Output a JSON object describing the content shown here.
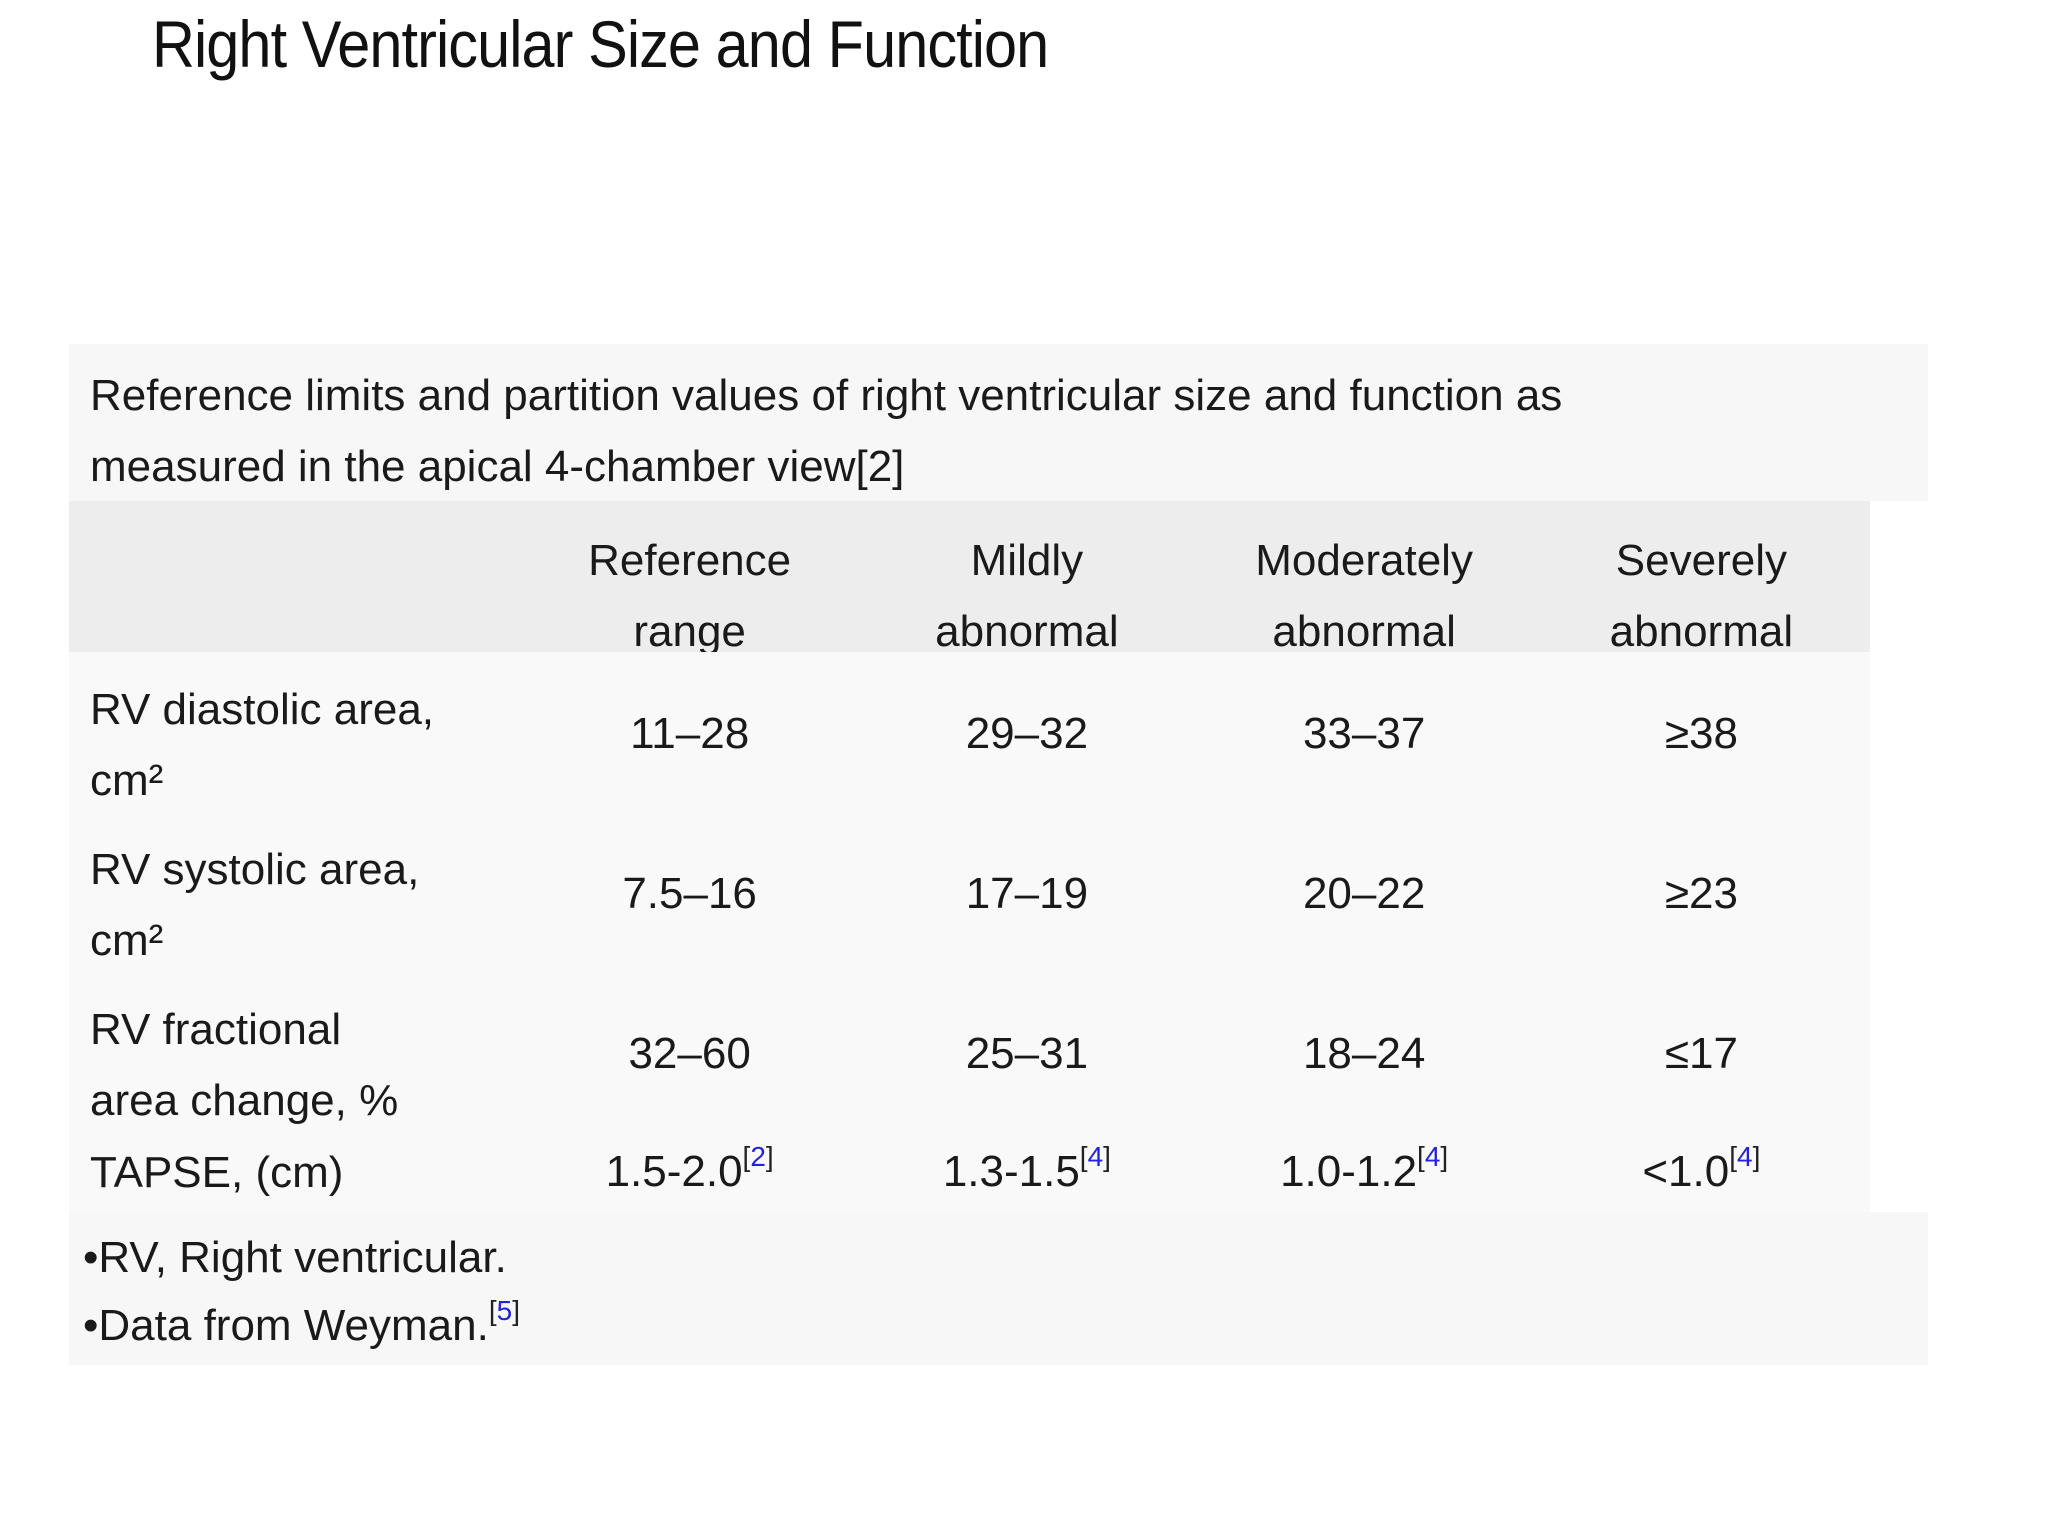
{
  "title": "Right Ventricular Size and Function",
  "caption": {
    "lines": [
      "Reference limits and partition values of right ventricular size and function as",
      "measured in the apical 4-chamber view[2]"
    ]
  },
  "refs": {
    "open": "[",
    "close": "]"
  },
  "table": {
    "columns": [
      {
        "lines": [
          "Reference",
          "range"
        ]
      },
      {
        "lines": [
          "Mildly",
          "abnormal"
        ]
      },
      {
        "lines": [
          "Moderately",
          "abnormal"
        ]
      },
      {
        "lines": [
          "Severely",
          "abnormal"
        ]
      }
    ],
    "rows": [
      {
        "label_lines": [
          "RV diastolic area,",
          "cm²"
        ],
        "values": [
          {
            "text": "11–28"
          },
          {
            "text": "29–32"
          },
          {
            "text": "33–37"
          },
          {
            "text": "≥38"
          }
        ]
      },
      {
        "label_lines": [
          "RV systolic area,",
          "cm²"
        ],
        "values": [
          {
            "text": "7.5–16"
          },
          {
            "text": "17–19"
          },
          {
            "text": "20–22"
          },
          {
            "text": "≥23"
          }
        ]
      },
      {
        "label_lines": [
          "RV fractional",
          "area change, %"
        ],
        "values": [
          {
            "text": "32–60"
          },
          {
            "text": "25–31"
          },
          {
            "text": "18–24"
          },
          {
            "text": "≤17"
          }
        ]
      },
      {
        "label_lines": [
          "TAPSE, (cm)"
        ],
        "values": [
          {
            "text": "1.5-2.0",
            "ref": "2"
          },
          {
            "text": "1.3-1.5",
            "ref": "4"
          },
          {
            "text": "1.0-1.2",
            "ref": "4"
          },
          {
            "text": "<1.0",
            "ref": "4"
          }
        ]
      }
    ]
  },
  "footnotes": {
    "lines": [
      {
        "text": "•RV, Right ventricular."
      },
      {
        "text": "•Data from Weyman.",
        "ref": "5"
      }
    ]
  },
  "colors": {
    "accent_blue": "#2222dd",
    "panel_bg": "#f7f7f7",
    "header_bg": "#ededed",
    "data_bg": "#f9f9f9",
    "text": "#1a1a1a"
  }
}
